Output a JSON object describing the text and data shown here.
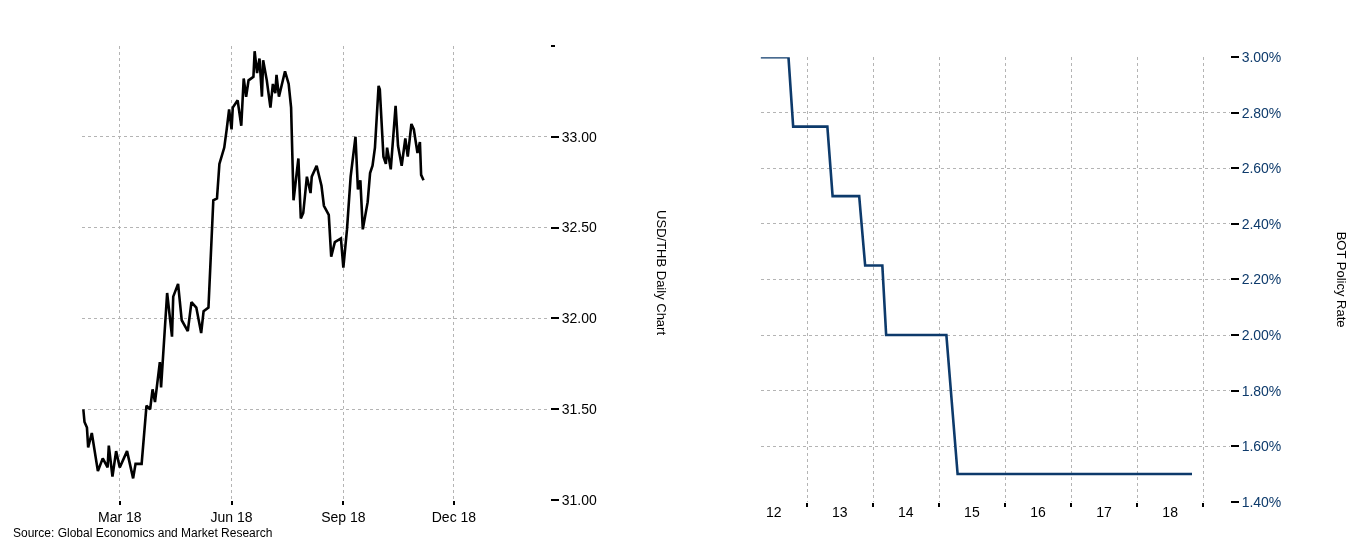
{
  "chart_data": [
    {
      "type": "line",
      "ylabel": "USD/THB Daily Chart",
      "grid": true,
      "x": [
        "2018-01-30",
        "2018-01-31",
        "2018-02-02",
        "2018-02-03",
        "2018-02-06",
        "2018-02-11",
        "2018-02-15",
        "2018-02-19",
        "2018-02-20",
        "2018-02-23",
        "2018-02-26",
        "2018-03-01",
        "2018-03-07",
        "2018-03-12",
        "2018-03-14",
        "2018-03-19",
        "2018-03-23",
        "2018-03-26",
        "2018-03-28",
        "2018-03-30",
        "2018-04-03",
        "2018-04-04",
        "2018-04-09",
        "2018-04-13",
        "2018-04-14",
        "2018-04-18",
        "2018-04-21",
        "2018-04-26",
        "2018-04-29",
        "2018-05-03",
        "2018-05-07",
        "2018-05-09",
        "2018-05-13",
        "2018-05-17",
        "2018-05-20",
        "2018-05-22",
        "2018-05-26",
        "2018-05-28",
        "2018-05-30",
        "2018-06-01",
        "2018-06-02",
        "2018-06-06",
        "2018-06-09",
        "2018-06-11",
        "2018-06-13",
        "2018-06-15",
        "2018-06-19",
        "2018-06-20",
        "2018-06-22",
        "2018-06-24",
        "2018-06-26",
        "2018-06-27",
        "2018-06-30",
        "2018-07-03",
        "2018-07-05",
        "2018-07-07",
        "2018-07-08",
        "2018-07-10",
        "2018-07-15",
        "2018-07-18",
        "2018-07-20",
        "2018-07-22",
        "2018-07-26",
        "2018-07-28",
        "2018-07-30",
        "2018-08-02",
        "2018-08-05",
        "2018-08-06",
        "2018-08-10",
        "2018-08-14",
        "2018-08-16",
        "2018-08-20",
        "2018-08-22",
        "2018-08-25",
        "2018-08-30",
        "2018-09-01",
        "2018-09-04",
        "2018-09-07",
        "2018-09-11",
        "2018-09-13",
        "2018-09-15",
        "2018-09-17",
        "2018-09-21",
        "2018-09-23",
        "2018-09-25",
        "2018-09-27",
        "2018-09-30",
        "2018-10-01",
        "2018-10-04",
        "2018-10-06",
        "2018-10-07",
        "2018-10-10",
        "2018-10-14",
        "2018-10-16",
        "2018-10-19",
        "2018-10-22",
        "2018-10-24",
        "2018-10-27",
        "2018-10-29",
        "2018-11-01",
        "2018-11-03",
        "2018-11-04",
        "2018-11-06"
      ],
      "series": [
        {
          "color": "#000000",
          "values": [
            31.5,
            31.43,
            31.4,
            31.29,
            31.37,
            31.16,
            31.23,
            31.18,
            31.3,
            31.13,
            31.27,
            31.18,
            31.27,
            31.12,
            31.2,
            31.2,
            31.52,
            31.5,
            31.61,
            31.54,
            31.76,
            31.62,
            32.14,
            31.9,
            32.12,
            32.19,
            31.99,
            31.93,
            32.09,
            32.06,
            31.92,
            32.04,
            32.06,
            32.65,
            32.66,
            32.85,
            32.94,
            33.04,
            33.15,
            33.04,
            33.16,
            33.2,
            33.06,
            33.32,
            33.22,
            33.31,
            33.33,
            33.47,
            33.35,
            33.43,
            33.22,
            33.42,
            33.31,
            33.16,
            33.29,
            33.24,
            33.34,
            33.22,
            33.36,
            33.29,
            33.16,
            32.65,
            32.88,
            32.55,
            32.58,
            32.78,
            32.69,
            32.78,
            32.84,
            32.73,
            32.62,
            32.57,
            32.34,
            32.42,
            32.44,
            32.28,
            32.49,
            32.78,
            33.0,
            32.71,
            32.76,
            32.49,
            32.64,
            32.8,
            32.84,
            32.94,
            33.28,
            33.26,
            32.89,
            32.85,
            32.94,
            32.82,
            33.17,
            32.95,
            32.84,
            32.99,
            32.89,
            33.07,
            33.04,
            32.91,
            32.97,
            32.79,
            32.76
          ]
        }
      ],
      "xlim": [
        "2018-01-29",
        "2019-02-18"
      ],
      "xticks": [
        {
          "value": "2018-03-01",
          "label": "Mar 18"
        },
        {
          "value": "2018-06-01",
          "label": "Jun 18"
        },
        {
          "value": "2018-09-01",
          "label": "Sep 18"
        },
        {
          "value": "2018-12-01",
          "label": "Dec 18"
        }
      ],
      "ylim": [
        31,
        33.5
      ],
      "yticks": [
        {
          "value": 31,
          "label": "31.00"
        },
        {
          "value": 31.5,
          "label": "31.50"
        },
        {
          "value": 32,
          "label": "32.00"
        },
        {
          "value": 32.5,
          "label": "32.50"
        },
        {
          "value": 33,
          "label": "33.00"
        },
        {
          "value": 33.5,
          "label": null
        }
      ],
      "annotations": [
        "Source: Global Economics and Market Research"
      ]
    },
    {
      "type": "line",
      "ylabel": "BOT Policy Rate",
      "grid": true,
      "x": [
        "2012-04-19",
        "2012-09-20",
        "2012-10-16",
        "2013-04-23",
        "2013-05-22",
        "2013-10-16",
        "2013-11-18",
        "2014-02-21",
        "2014-03-14",
        "2015-02-10",
        "2015-04-13",
        "2018-10-30"
      ],
      "series": [
        {
          "color": "#0d3a6b",
          "values": [
            3.0,
            3.0,
            2.75,
            2.75,
            2.5,
            2.5,
            2.25,
            2.25,
            2.0,
            2.0,
            1.5,
            1.5
          ]
        }
      ],
      "xlim": [
        "2012-04-19",
        "2019-05-27"
      ],
      "xticks": [
        {
          "value": "2012-07-01",
          "label": "12"
        },
        {
          "value": "2013-01-01",
          "label": null
        },
        {
          "value": "2013-07-01",
          "label": "13"
        },
        {
          "value": "2014-01-01",
          "label": null
        },
        {
          "value": "2014-07-01",
          "label": "14"
        },
        {
          "value": "2015-01-01",
          "label": null
        },
        {
          "value": "2015-07-01",
          "label": "15"
        },
        {
          "value": "2016-01-01",
          "label": null
        },
        {
          "value": "2016-07-01",
          "label": "16"
        },
        {
          "value": "2017-01-01",
          "label": null
        },
        {
          "value": "2017-07-01",
          "label": "17"
        },
        {
          "value": "2018-01-01",
          "label": null
        },
        {
          "value": "2018-07-01",
          "label": "18"
        },
        {
          "value": "2019-01-01",
          "label": null
        }
      ],
      "ylim": [
        1.4,
        3.0
      ],
      "yticks": [
        {
          "value": 1.4,
          "label": "1.40%"
        },
        {
          "value": 1.6,
          "label": "1.60%"
        },
        {
          "value": 1.8,
          "label": "1.80%"
        },
        {
          "value": 2.0,
          "label": "2.00%"
        },
        {
          "value": 2.2,
          "label": "2.20%"
        },
        {
          "value": 2.4,
          "label": "2.40%"
        },
        {
          "value": 2.6,
          "label": "2.60%"
        },
        {
          "value": 2.8,
          "label": "2.80%"
        },
        {
          "value": 3.0,
          "label": "3.00%"
        }
      ]
    }
  ]
}
